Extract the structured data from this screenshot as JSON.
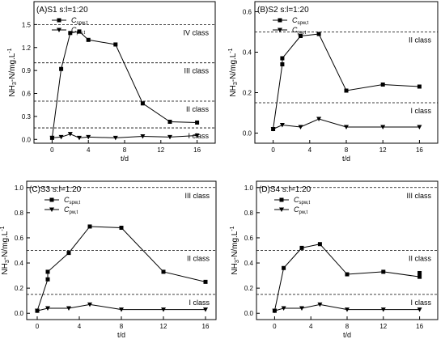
{
  "chart_data": [
    {
      "type": "line",
      "title": "(A)S1 s:l=1:20",
      "xlabel": "t/d",
      "ylabel": "NH3-N/mg.L-1",
      "xlim": [
        -2,
        18
      ],
      "ylim": [
        -0.05,
        1.8
      ],
      "xticks": [
        0,
        4,
        8,
        12,
        16
      ],
      "yticks": [
        0.0,
        0.3,
        0.6,
        0.9,
        1.2,
        1.5
      ],
      "ytick_decimals": 1,
      "legend": [
        "C_spw,t",
        "C_pw,t"
      ],
      "legend_position": "top-left",
      "series": [
        {
          "name": "C_spw,t",
          "marker": "square",
          "x": [
            0,
            1,
            2,
            3,
            4,
            7,
            10,
            13,
            16
          ],
          "y": [
            0.02,
            0.92,
            1.39,
            1.41,
            1.3,
            1.24,
            0.47,
            0.23,
            0.22
          ]
        },
        {
          "name": "C_pw,t",
          "marker": "triangle-down",
          "x": [
            0,
            1,
            2,
            3,
            4,
            7,
            10,
            13,
            16
          ],
          "y": [
            0.02,
            0.03,
            0.07,
            0.02,
            0.03,
            0.02,
            0.04,
            0.03,
            0.05
          ]
        }
      ],
      "thresholds": [
        {
          "value": 1.5,
          "label": "IV class"
        },
        {
          "value": 1.0,
          "label": "III class"
        },
        {
          "value": 0.5,
          "label": "II class"
        },
        {
          "value": 0.15,
          "label": "I class"
        }
      ]
    },
    {
      "type": "line",
      "title": "(B)S2 s:l=1:20",
      "xlabel": "t/d",
      "ylabel": "NH3-N/mg.L-1",
      "xlim": [
        -2,
        18
      ],
      "ylim": [
        -0.05,
        0.65
      ],
      "xticks": [
        0,
        4,
        8,
        12,
        16
      ],
      "yticks": [
        0.0,
        0.2,
        0.4,
        0.6
      ],
      "ytick_decimals": 1,
      "legend": [
        "C_spw,t",
        "C_pw,t"
      ],
      "legend_position": "top-left",
      "series": [
        {
          "name": "C_spw,t",
          "marker": "square",
          "x": [
            0,
            1,
            1,
            3,
            5,
            8,
            12,
            16
          ],
          "y": [
            0.02,
            0.34,
            0.37,
            0.48,
            0.49,
            0.21,
            0.24,
            0.23
          ]
        },
        {
          "name": "C_pw,t",
          "marker": "triangle-down",
          "x": [
            0,
            1,
            3,
            5,
            8,
            12,
            16
          ],
          "y": [
            0.02,
            0.04,
            0.03,
            0.07,
            0.03,
            0.03,
            0.03
          ]
        }
      ],
      "thresholds": [
        {
          "value": 0.5,
          "label": "II class"
        },
        {
          "value": 0.15,
          "label": "I class"
        }
      ]
    },
    {
      "type": "line",
      "title": "(C)S3 s:l=1:20",
      "xlabel": "t/d",
      "ylabel": "NH3-N/mg.L-1",
      "xlim": [
        -1,
        17
      ],
      "ylim": [
        -0.05,
        1.05
      ],
      "xticks": [
        0,
        4,
        8,
        12,
        16
      ],
      "yticks": [
        0.0,
        0.2,
        0.4,
        0.6,
        0.8,
        1.0
      ],
      "ytick_decimals": 1,
      "legend": [
        "C_spw,t",
        "C_pw,t"
      ],
      "legend_position": "top-left",
      "series": [
        {
          "name": "C_spw,t",
          "marker": "square",
          "x": [
            0,
            1,
            1,
            3,
            5,
            8,
            12,
            16
          ],
          "y": [
            0.02,
            0.27,
            0.33,
            0.48,
            0.69,
            0.68,
            0.33,
            0.25
          ]
        },
        {
          "name": "C_pw,t",
          "marker": "triangle-down",
          "x": [
            0,
            1,
            3,
            5,
            8,
            12,
            16
          ],
          "y": [
            0.02,
            0.04,
            0.04,
            0.07,
            0.03,
            0.03,
            0.03
          ]
        }
      ],
      "thresholds": [
        {
          "value": 1.0,
          "label": "III class"
        },
        {
          "value": 0.5,
          "label": "II class"
        },
        {
          "value": 0.15,
          "label": "I class"
        }
      ]
    },
    {
      "type": "line",
      "title": "(D)S4 s:l=1:20",
      "xlabel": "t/d",
      "ylabel": "NH3-N/mg.L-1",
      "xlim": [
        -2,
        18
      ],
      "ylim": [
        -0.05,
        1.05
      ],
      "xticks": [
        0,
        4,
        8,
        12,
        16
      ],
      "yticks": [
        0.0,
        0.2,
        0.4,
        0.6,
        0.8,
        1.0
      ],
      "ytick_decimals": 1,
      "legend": [
        "C_spw,t",
        "C_pw,t"
      ],
      "legend_position": "top-left",
      "series": [
        {
          "name": "C_spw,t",
          "marker": "square",
          "x": [
            0,
            1,
            3,
            5,
            8,
            12,
            16,
            16
          ],
          "y": [
            0.02,
            0.36,
            0.52,
            0.55,
            0.31,
            0.33,
            0.29,
            0.32
          ]
        },
        {
          "name": "C_pw,t",
          "marker": "triangle-down",
          "x": [
            0,
            1,
            3,
            5,
            8,
            12,
            16
          ],
          "y": [
            0.02,
            0.04,
            0.04,
            0.07,
            0.03,
            0.03,
            0.03
          ]
        }
      ],
      "thresholds": [
        {
          "value": 1.0,
          "label": "III class"
        },
        {
          "value": 0.5,
          "label": "II class"
        },
        {
          "value": 0.15,
          "label": "I class"
        }
      ]
    }
  ]
}
